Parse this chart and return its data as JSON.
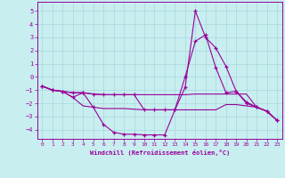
{
  "background_color": "#c8eef0",
  "grid_color": "#a8d8dc",
  "line_color": "#990099",
  "xlabel": "Windchill (Refroidissement éolien,°C)",
  "xlim": [
    -0.5,
    23.5
  ],
  "ylim": [
    -4.7,
    5.7
  ],
  "yticks": [
    -4,
    -3,
    -2,
    -1,
    0,
    1,
    2,
    3,
    4,
    5
  ],
  "xticks": [
    0,
    1,
    2,
    3,
    4,
    5,
    6,
    7,
    8,
    9,
    10,
    11,
    12,
    13,
    14,
    15,
    16,
    17,
    18,
    19,
    20,
    21,
    22,
    23
  ],
  "series": [
    {
      "x": [
        0,
        1,
        2,
        3,
        4,
        5,
        6,
        7,
        8,
        9,
        10,
        11,
        12,
        13,
        14,
        15,
        16,
        17,
        18,
        19,
        20,
        21,
        22,
        23
      ],
      "y": [
        -0.7,
        -1.0,
        -1.1,
        -1.2,
        -1.2,
        -2.3,
        -3.6,
        -4.2,
        -4.35,
        -4.35,
        -4.4,
        -4.4,
        -4.4,
        -2.5,
        -0.8,
        5.0,
        3.0,
        2.2,
        0.8,
        -1.1,
        -2.0,
        -2.3,
        -2.6,
        -3.3
      ],
      "marker": true
    },
    {
      "x": [
        0,
        1,
        2,
        3,
        4,
        5,
        6,
        7,
        8,
        9,
        10,
        11,
        12,
        13,
        14,
        15,
        16,
        17,
        18,
        19,
        20,
        21,
        22,
        23
      ],
      "y": [
        -0.7,
        -1.0,
        -1.1,
        -1.2,
        -1.2,
        -1.3,
        -1.35,
        -1.35,
        -1.35,
        -1.35,
        -1.35,
        -1.35,
        -1.35,
        -1.35,
        -1.35,
        -1.3,
        -1.3,
        -1.3,
        -1.3,
        -1.3,
        -1.3,
        -2.3,
        -2.6,
        -3.3
      ],
      "marker": false
    },
    {
      "x": [
        0,
        1,
        2,
        3,
        4,
        5,
        6,
        7,
        8,
        9,
        10,
        11,
        12,
        13,
        14,
        15,
        16,
        17,
        18,
        19,
        20,
        21,
        22,
        23
      ],
      "y": [
        -0.7,
        -1.0,
        -1.1,
        -1.55,
        -2.2,
        -2.3,
        -2.4,
        -2.4,
        -2.4,
        -2.45,
        -2.5,
        -2.5,
        -2.5,
        -2.5,
        -2.5,
        -2.5,
        -2.5,
        -2.5,
        -2.1,
        -2.1,
        -2.2,
        -2.3,
        -2.6,
        -3.3
      ],
      "marker": false
    },
    {
      "x": [
        0,
        1,
        2,
        3,
        4,
        5,
        6,
        7,
        8,
        9,
        10,
        11,
        12,
        13,
        14,
        15,
        16,
        17,
        18,
        19,
        20,
        21,
        22,
        23
      ],
      "y": [
        -0.7,
        -1.0,
        -1.1,
        -1.55,
        -1.2,
        -1.3,
        -1.35,
        -1.35,
        -1.35,
        -1.35,
        -2.5,
        -2.5,
        -2.5,
        -2.5,
        0.0,
        2.7,
        3.2,
        0.7,
        -1.2,
        -1.1,
        -1.9,
        -2.3,
        -2.6,
        -3.3
      ],
      "marker": true
    }
  ]
}
